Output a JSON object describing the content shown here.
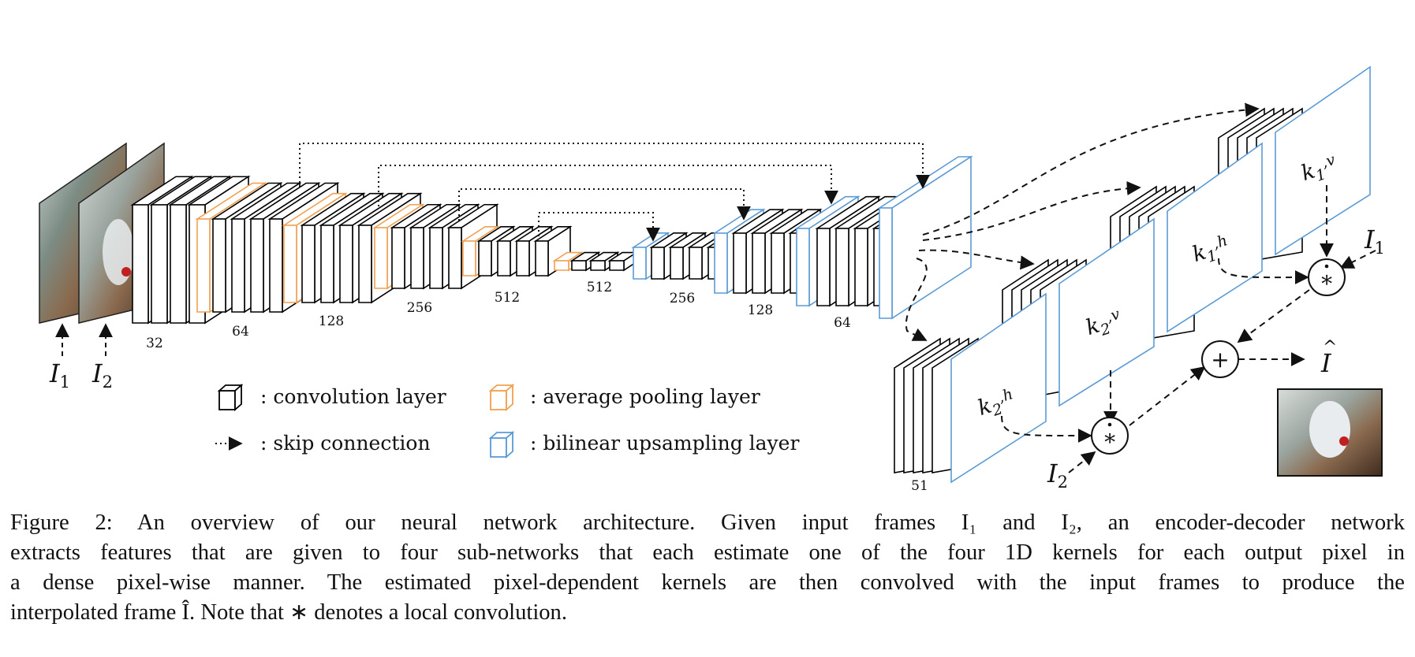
{
  "figure": {
    "input_labels": [
      "I",
      "I"
    ],
    "input_subscripts": [
      "1",
      "2"
    ],
    "encoder_dims": [
      "32",
      "64",
      "128",
      "256",
      "512",
      "512"
    ],
    "decoder_dims": [
      "256",
      "128",
      "64",
      "51"
    ],
    "kernels": [
      {
        "base": "k",
        "sub": "1",
        "dir": "v"
      },
      {
        "base": "k",
        "sub": "1",
        "dir": "h"
      },
      {
        "base": "k",
        "sub": "2",
        "dir": "v"
      },
      {
        "base": "k",
        "sub": "2",
        "dir": "h"
      }
    ],
    "operators": {
      "conv_top": "∗",
      "conv_bottom": "∗",
      "sum": "+"
    },
    "output_label": "I",
    "right_inputs": [
      {
        "base": "I",
        "sub": "1"
      },
      {
        "base": "I",
        "sub": "2"
      }
    ]
  },
  "legend": {
    "conv": ": convolution layer",
    "pool": ": average pooling layer",
    "skip": ": skip connection",
    "upsample": ": bilinear upsampling layer"
  },
  "colors": {
    "convolution": "#000000",
    "pooling": "#f0a050",
    "upsampling": "#5b9bd5",
    "text": "#111111"
  },
  "caption": {
    "lines": [
      "Figure 2:  An overview of our neural network architecture.  Given input frames I₁ and I₂, an encoder-decoder network",
      "extracts features that are given to four sub-networks that each estimate one of the four 1D kernels for each output pixel in",
      "a dense pixel-wise manner. The estimated pixel-dependent kernels are then convolved with the input frames to produce the",
      "interpolated frame Î. Note that ∗ denotes a local convolution."
    ]
  }
}
